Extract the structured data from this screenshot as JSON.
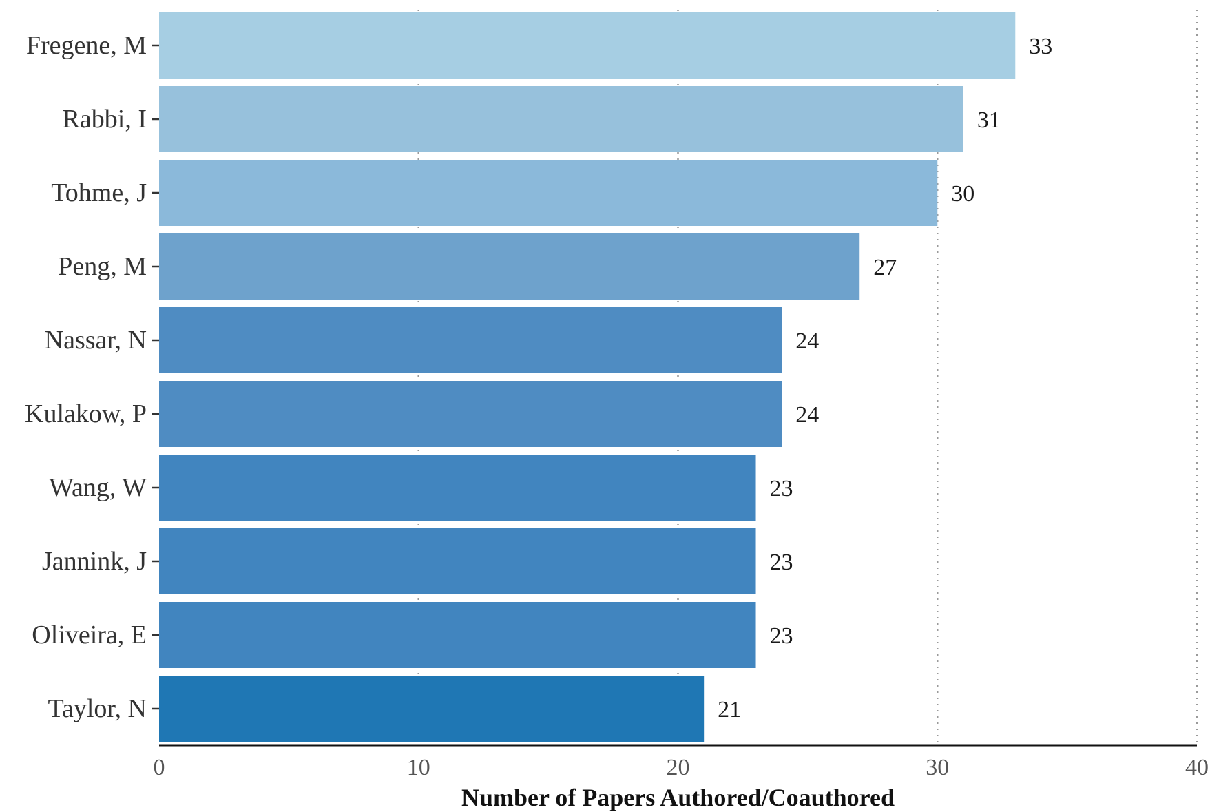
{
  "chart_data": {
    "type": "bar",
    "orientation": "horizontal",
    "categories": [
      "Fregene, M",
      "Rabbi, I",
      "Tohme, J",
      "Peng, M",
      "Nassar, N",
      "Kulakow, P",
      "Wang, W",
      "Jannink, J",
      "Oliveira, E",
      "Taylor, N"
    ],
    "values": [
      33,
      31,
      30,
      27,
      24,
      24,
      23,
      23,
      23,
      21
    ],
    "value_labels": [
      "33",
      "31",
      "30",
      "27",
      "24",
      "24",
      "23",
      "23",
      "23",
      "21"
    ],
    "bar_colors": [
      "#a6cee3",
      "#97c1dc",
      "#8bb9da",
      "#6ea2cc",
      "#4f8cc2",
      "#4f8cc2",
      "#4185bf",
      "#4185bf",
      "#4185bf",
      "#1f77b4"
    ],
    "title": "",
    "xlabel": "Number of Papers Authored/Coauthored",
    "ylabel": "",
    "xlim": [
      0,
      40
    ],
    "xticks": [
      0,
      10,
      20,
      30,
      40
    ],
    "xtick_labels": [
      "0",
      "10",
      "20",
      "30",
      "40"
    ],
    "grid": "vertical dotted",
    "legend": "none"
  }
}
